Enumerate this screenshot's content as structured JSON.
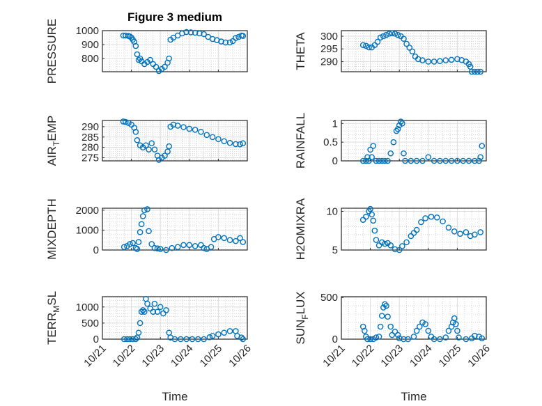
{
  "title": "Figure 3 medium",
  "xlabel": "Time",
  "x_ticks": [
    "10/21",
    "10/22",
    "10/23",
    "10/24",
    "10/25",
    "10/26"
  ],
  "x_unit_note": "x values are days after 10/21 00:00",
  "marker_color": "#0072BD",
  "chart_data": [
    {
      "type": "scatter",
      "ylabel": "PRESSURE",
      "xlim": [
        0,
        5
      ],
      "ylim": [
        705,
        1000
      ],
      "yticks": [
        800,
        900,
        1000
      ],
      "points": [
        [
          0.72,
          965
        ],
        [
          0.8,
          965
        ],
        [
          0.9,
          962
        ],
        [
          0.95,
          958
        ],
        [
          1.0,
          950
        ],
        [
          1.05,
          935
        ],
        [
          1.1,
          920
        ],
        [
          1.15,
          890
        ],
        [
          1.2,
          830
        ],
        [
          1.25,
          790
        ],
        [
          1.3,
          800
        ],
        [
          1.35,
          780
        ],
        [
          1.45,
          760
        ],
        [
          1.55,
          775
        ],
        [
          1.65,
          790
        ],
        [
          1.75,
          760
        ],
        [
          1.85,
          740
        ],
        [
          1.95,
          710
        ],
        [
          2.05,
          725
        ],
        [
          2.15,
          740
        ],
        [
          2.25,
          770
        ],
        [
          2.3,
          800
        ],
        [
          2.35,
          935
        ],
        [
          2.45,
          950
        ],
        [
          2.6,
          965
        ],
        [
          2.75,
          980
        ],
        [
          2.9,
          990
        ],
        [
          3.05,
          988
        ],
        [
          3.2,
          985
        ],
        [
          3.35,
          980
        ],
        [
          3.5,
          975
        ],
        [
          3.65,
          955
        ],
        [
          3.8,
          940
        ],
        [
          3.95,
          932
        ],
        [
          4.1,
          922
        ],
        [
          4.25,
          915
        ],
        [
          4.4,
          915
        ],
        [
          4.5,
          925
        ],
        [
          4.6,
          948
        ],
        [
          4.7,
          955
        ],
        [
          4.8,
          965
        ],
        [
          4.85,
          962
        ]
      ]
    },
    {
      "type": "scatter",
      "ylabel": "THETA",
      "xlim": [
        0,
        5
      ],
      "ylim": [
        286,
        302.2
      ],
      "yticks": [
        290,
        295,
        300
      ],
      "points": [
        [
          0.75,
          296.5
        ],
        [
          0.85,
          296.2
        ],
        [
          0.95,
          295.6
        ],
        [
          1.05,
          295.6
        ],
        [
          1.15,
          296.5
        ],
        [
          1.25,
          297.8
        ],
        [
          1.35,
          299.5
        ],
        [
          1.45,
          300
        ],
        [
          1.55,
          300.5
        ],
        [
          1.65,
          301
        ],
        [
          1.75,
          301.2
        ],
        [
          1.85,
          301
        ],
        [
          1.95,
          300.5
        ],
        [
          2.05,
          300
        ],
        [
          2.15,
          299
        ],
        [
          2.25,
          297
        ],
        [
          2.35,
          295.5
        ],
        [
          2.45,
          294
        ],
        [
          2.55,
          292
        ],
        [
          2.65,
          291
        ],
        [
          2.8,
          290.5
        ],
        [
          3.0,
          290
        ],
        [
          3.2,
          290
        ],
        [
          3.4,
          290.2
        ],
        [
          3.6,
          290.5
        ],
        [
          3.8,
          290.7
        ],
        [
          4.0,
          291
        ],
        [
          4.15,
          290.6
        ],
        [
          4.3,
          290
        ],
        [
          4.4,
          289
        ],
        [
          4.45,
          288
        ],
        [
          4.5,
          286
        ],
        [
          4.6,
          286
        ],
        [
          4.7,
          286
        ],
        [
          4.8,
          286
        ]
      ]
    },
    {
      "type": "scatter",
      "ylabel": "AIR_TEMP",
      "xlim": [
        0,
        5
      ],
      "ylim": [
        273.5,
        293
      ],
      "yticks": [
        275,
        280,
        285,
        290
      ],
      "points": [
        [
          0.72,
          292.5
        ],
        [
          0.8,
          292.3
        ],
        [
          0.9,
          291.8
        ],
        [
          1.0,
          291
        ],
        [
          1.1,
          289.5
        ],
        [
          1.15,
          287.5
        ],
        [
          1.2,
          283.5
        ],
        [
          1.3,
          281
        ],
        [
          1.4,
          280
        ],
        [
          1.5,
          281
        ],
        [
          1.6,
          279
        ],
        [
          1.7,
          282
        ],
        [
          1.8,
          279
        ],
        [
          1.9,
          276
        ],
        [
          1.95,
          274
        ],
        [
          2.05,
          275
        ],
        [
          2.15,
          276
        ],
        [
          2.25,
          278
        ],
        [
          2.3,
          280.5
        ],
        [
          2.35,
          290
        ],
        [
          2.45,
          291
        ],
        [
          2.6,
          290.5
        ],
        [
          2.8,
          289.8
        ],
        [
          3.0,
          289
        ],
        [
          3.2,
          288.5
        ],
        [
          3.4,
          287.5
        ],
        [
          3.6,
          286
        ],
        [
          3.8,
          285
        ],
        [
          4.0,
          284
        ],
        [
          4.2,
          283
        ],
        [
          4.4,
          282.2
        ],
        [
          4.6,
          281.6
        ],
        [
          4.75,
          281.5
        ],
        [
          4.85,
          282
        ]
      ]
    },
    {
      "type": "scatter",
      "ylabel": "RAINFALL",
      "xlim": [
        0,
        5
      ],
      "ylim": [
        0,
        1.08
      ],
      "yticks": [
        0,
        0.5,
        1
      ],
      "points": [
        [
          0.75,
          0
        ],
        [
          0.85,
          0
        ],
        [
          0.9,
          0.1
        ],
        [
          0.95,
          0
        ],
        [
          1.0,
          0.3
        ],
        [
          1.05,
          0.1
        ],
        [
          1.1,
          0.4
        ],
        [
          1.2,
          0
        ],
        [
          1.3,
          0
        ],
        [
          1.4,
          0
        ],
        [
          1.5,
          0
        ],
        [
          1.6,
          0
        ],
        [
          1.7,
          0.2
        ],
        [
          1.8,
          0.5
        ],
        [
          1.9,
          0.8
        ],
        [
          1.95,
          0.85
        ],
        [
          2.0,
          0.95
        ],
        [
          2.05,
          1.05
        ],
        [
          2.1,
          1.0
        ],
        [
          2.15,
          0.2
        ],
        [
          2.2,
          0
        ],
        [
          2.4,
          0
        ],
        [
          2.6,
          0
        ],
        [
          2.8,
          0
        ],
        [
          3.0,
          0.1
        ],
        [
          3.2,
          0
        ],
        [
          3.4,
          0
        ],
        [
          3.6,
          0
        ],
        [
          3.8,
          0
        ],
        [
          4.0,
          0
        ],
        [
          4.2,
          0
        ],
        [
          4.4,
          0
        ],
        [
          4.6,
          0
        ],
        [
          4.75,
          0
        ],
        [
          4.8,
          0.1
        ],
        [
          4.85,
          0.4
        ]
      ]
    },
    {
      "type": "scatter",
      "ylabel": "MIXDEPTH",
      "xlim": [
        0,
        5
      ],
      "ylim": [
        0,
        2100
      ],
      "yticks": [
        0,
        1000,
        2000
      ],
      "points": [
        [
          0.75,
          150
        ],
        [
          0.85,
          200
        ],
        [
          0.95,
          300
        ],
        [
          1.05,
          350
        ],
        [
          1.15,
          100
        ],
        [
          1.2,
          50
        ],
        [
          1.25,
          400
        ],
        [
          1.3,
          900
        ],
        [
          1.35,
          1300
        ],
        [
          1.4,
          1700
        ],
        [
          1.45,
          2000
        ],
        [
          1.55,
          2050
        ],
        [
          1.6,
          950
        ],
        [
          1.7,
          300
        ],
        [
          1.8,
          100
        ],
        [
          1.9,
          80
        ],
        [
          2.0,
          50
        ],
        [
          2.2,
          0
        ],
        [
          2.4,
          100
        ],
        [
          2.6,
          150
        ],
        [
          2.8,
          250
        ],
        [
          3.0,
          250
        ],
        [
          3.2,
          200
        ],
        [
          3.4,
          250
        ],
        [
          3.5,
          100
        ],
        [
          3.6,
          50
        ],
        [
          3.75,
          150
        ],
        [
          3.85,
          550
        ],
        [
          4.0,
          650
        ],
        [
          4.2,
          600
        ],
        [
          4.4,
          500
        ],
        [
          4.6,
          450
        ],
        [
          4.75,
          600
        ],
        [
          4.85,
          400
        ]
      ]
    },
    {
      "type": "scatter",
      "ylabel": "H2OMIXRA",
      "xlim": [
        0,
        5
      ],
      "ylim": [
        5,
        10.4
      ],
      "yticks": [
        5,
        10
      ],
      "points": [
        [
          0.75,
          8.9
        ],
        [
          0.85,
          9.3
        ],
        [
          0.95,
          10
        ],
        [
          1.0,
          10.3
        ],
        [
          1.05,
          9.6
        ],
        [
          1.1,
          8.8
        ],
        [
          1.15,
          7.5
        ],
        [
          1.2,
          6.3
        ],
        [
          1.3,
          5.6
        ],
        [
          1.4,
          6.0
        ],
        [
          1.5,
          5.8
        ],
        [
          1.6,
          5.9
        ],
        [
          1.7,
          5.6
        ],
        [
          1.85,
          5.1
        ],
        [
          2.0,
          5.0
        ],
        [
          2.1,
          5.5
        ],
        [
          2.25,
          6.0
        ],
        [
          2.4,
          6.8
        ],
        [
          2.5,
          7.2
        ],
        [
          2.6,
          7.6
        ],
        [
          2.75,
          8.6
        ],
        [
          2.9,
          9.1
        ],
        [
          3.1,
          9.3
        ],
        [
          3.3,
          9.2
        ],
        [
          3.5,
          8.7
        ],
        [
          3.7,
          7.9
        ],
        [
          3.9,
          7.4
        ],
        [
          4.1,
          7.1
        ],
        [
          4.3,
          7.3
        ],
        [
          4.45,
          6.8
        ],
        [
          4.6,
          7.0
        ],
        [
          4.8,
          7.3
        ]
      ]
    },
    {
      "type": "scatter",
      "ylabel": "TERR_MSL",
      "xlim": [
        0,
        5
      ],
      "ylim": [
        0,
        1320
      ],
      "yticks": [
        0,
        500,
        1000
      ],
      "points": [
        [
          0.75,
          0
        ],
        [
          0.85,
          0
        ],
        [
          0.95,
          0
        ],
        [
          1.05,
          0
        ],
        [
          1.15,
          0
        ],
        [
          1.2,
          50
        ],
        [
          1.25,
          200
        ],
        [
          1.3,
          500
        ],
        [
          1.35,
          850
        ],
        [
          1.4,
          900
        ],
        [
          1.45,
          850
        ],
        [
          1.5,
          1250
        ],
        [
          1.55,
          1100
        ],
        [
          1.65,
          950
        ],
        [
          1.75,
          850
        ],
        [
          1.8,
          1100
        ],
        [
          1.9,
          850
        ],
        [
          2.0,
          1000
        ],
        [
          2.1,
          800
        ],
        [
          2.2,
          900
        ],
        [
          2.3,
          200
        ],
        [
          2.35,
          50
        ],
        [
          2.5,
          0
        ],
        [
          2.7,
          0
        ],
        [
          2.9,
          0
        ],
        [
          3.1,
          0
        ],
        [
          3.3,
          0
        ],
        [
          3.5,
          0
        ],
        [
          3.7,
          60
        ],
        [
          3.8,
          100
        ],
        [
          4.0,
          150
        ],
        [
          4.2,
          200
        ],
        [
          4.4,
          250
        ],
        [
          4.6,
          250
        ],
        [
          4.65,
          100
        ],
        [
          4.8,
          50
        ],
        [
          4.85,
          0
        ]
      ]
    },
    {
      "type": "scatter",
      "ylabel": "SUN_FLUX",
      "xlim": [
        0,
        5
      ],
      "ylim": [
        0,
        510
      ],
      "yticks": [
        0,
        500
      ],
      "points": [
        [
          0.75,
          150
        ],
        [
          0.8,
          100
        ],
        [
          0.85,
          30
        ],
        [
          0.9,
          0
        ],
        [
          1.0,
          0
        ],
        [
          1.1,
          0
        ],
        [
          1.2,
          20
        ],
        [
          1.3,
          30
        ],
        [
          1.35,
          150
        ],
        [
          1.4,
          280
        ],
        [
          1.45,
          380
        ],
        [
          1.5,
          420
        ],
        [
          1.55,
          400
        ],
        [
          1.6,
          270
        ],
        [
          1.7,
          150
        ],
        [
          1.75,
          50
        ],
        [
          1.85,
          90
        ],
        [
          1.95,
          50
        ],
        [
          2.0,
          10
        ],
        [
          2.15,
          0
        ],
        [
          2.3,
          0
        ],
        [
          2.5,
          30
        ],
        [
          2.6,
          100
        ],
        [
          2.7,
          150
        ],
        [
          2.8,
          200
        ],
        [
          2.9,
          180
        ],
        [
          3.0,
          100
        ],
        [
          3.1,
          30
        ],
        [
          3.2,
          0
        ],
        [
          3.4,
          0
        ],
        [
          3.6,
          20
        ],
        [
          3.7,
          100
        ],
        [
          3.8,
          150
        ],
        [
          3.85,
          200
        ],
        [
          3.9,
          250
        ],
        [
          3.95,
          180
        ],
        [
          4.0,
          100
        ],
        [
          4.05,
          20
        ],
        [
          4.3,
          0
        ],
        [
          4.5,
          10
        ],
        [
          4.6,
          40
        ],
        [
          4.75,
          30
        ],
        [
          4.85,
          10
        ]
      ]
    }
  ]
}
